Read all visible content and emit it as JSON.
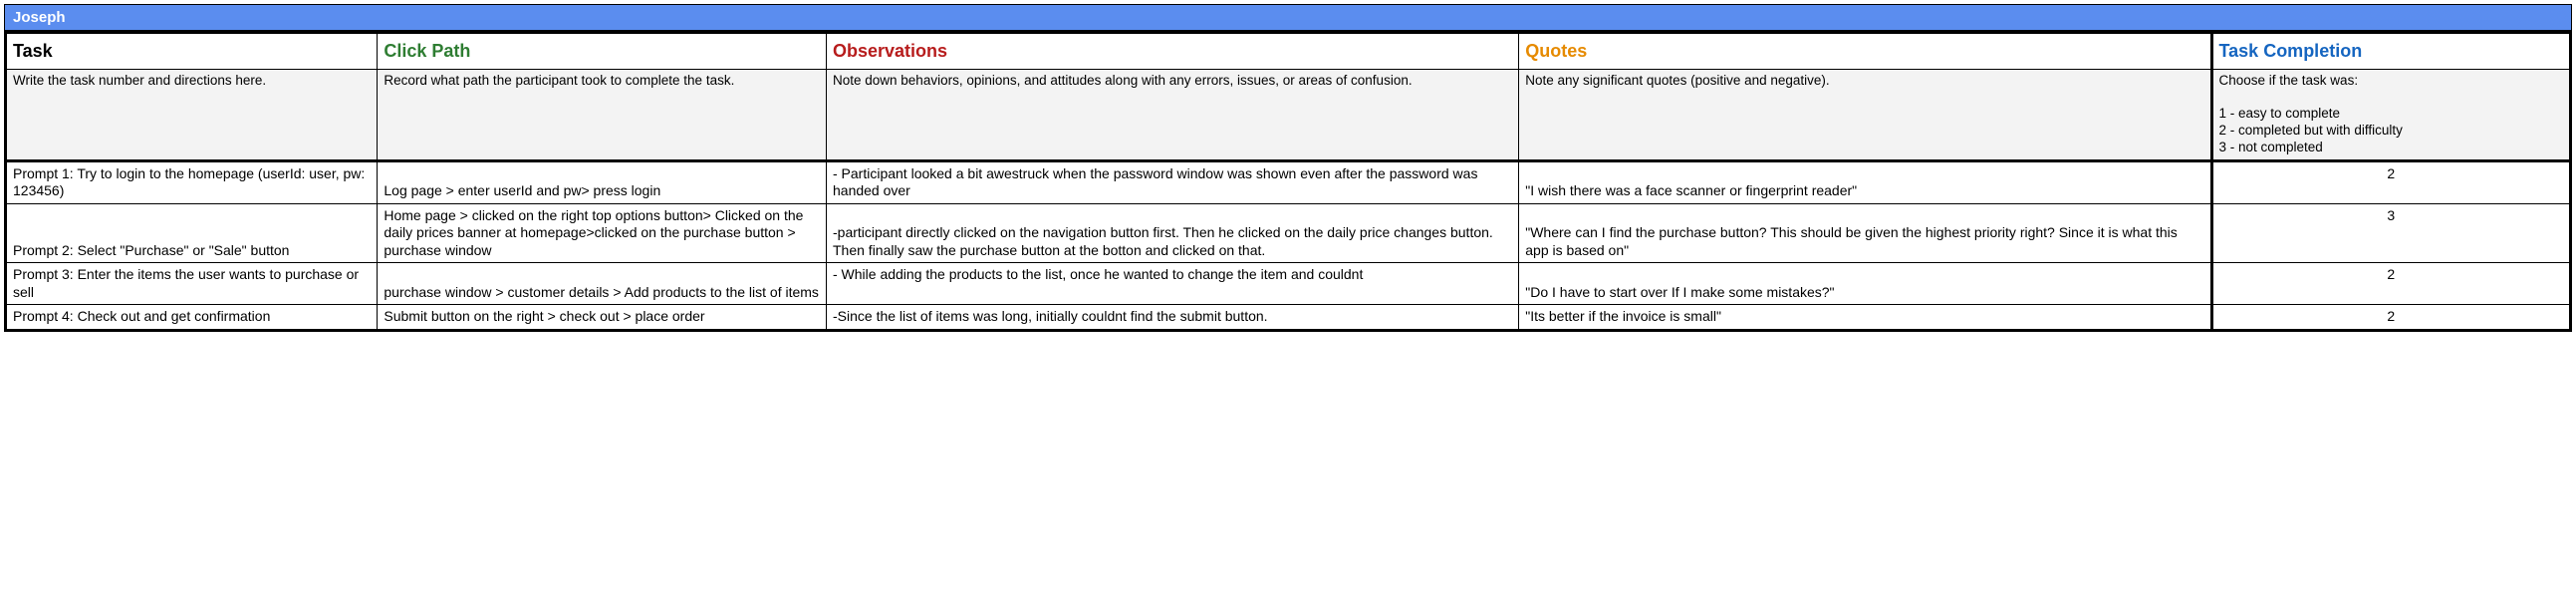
{
  "title": "Joseph",
  "colors": {
    "header_bg": "#5b8def",
    "header_text": "#ffffff",
    "desc_bg": "#f3f3f3",
    "col1": "#000000",
    "col2": "#2e7d32",
    "col3": "#b71c1c",
    "col4": "#e68a00",
    "col5": "#1565c0"
  },
  "columns": [
    {
      "header": "Task",
      "desc": "Write the task number and directions here."
    },
    {
      "header": "Click Path",
      "desc": "Record what path the participant took to complete the task."
    },
    {
      "header": "Observations",
      "desc": "Note down behaviors, opinions, and attitudes along with any errors, issues, or areas of confusion."
    },
    {
      "header": "Quotes",
      "desc": "Note any significant quotes (positive and negative)."
    },
    {
      "header": "Task Completion",
      "desc": "Choose if the task was:\n\n1 - easy to complete\n2 - completed but with difficulty\n3 - not completed"
    }
  ],
  "rows": [
    {
      "task": "Prompt 1: Try to login to the homepage (userId: user, pw: 123456)",
      "path": "Log page > enter userId and pw> press login",
      "obs": "- Participant looked a bit awestruck when the password window was shown even after the password was handed over",
      "quote": "\"I wish there was a face scanner or fingerprint reader\"",
      "completion": "2"
    },
    {
      "task": "Prompt 2: Select \"Purchase\" or \"Sale\" button",
      "path": "Home page > clicked on the right top options button> Clicked on the daily prices banner at homepage>clicked on the purchase button > purchase window",
      "obs": "-participant directly clicked on the navigation button first. Then he clicked on the daily price changes button. Then finally saw the purchase button at the botton and clicked on that.",
      "quote": "\"Where can I find the purchase button? This should be given the highest priority right? Since it is what this app is based on\"",
      "completion": "3"
    },
    {
      "task": "Prompt 3: Enter the items the user wants to purchase or sell",
      "path": "purchase window > customer details > Add products to the list of items",
      "obs": "- While adding the products to the list, once he wanted to change the item and couldnt",
      "quote": "\"Do I have to start over If I make some mistakes?\"",
      "completion": "2"
    },
    {
      "task": "Prompt 4: Check out and get confirmation",
      "path": "Submit button on the right  > check out > place order",
      "obs": "-Since the list of items was long, initially couldnt find the submit button.",
      "quote": "\"Its better if the invoice is small\"",
      "completion": "2"
    }
  ]
}
